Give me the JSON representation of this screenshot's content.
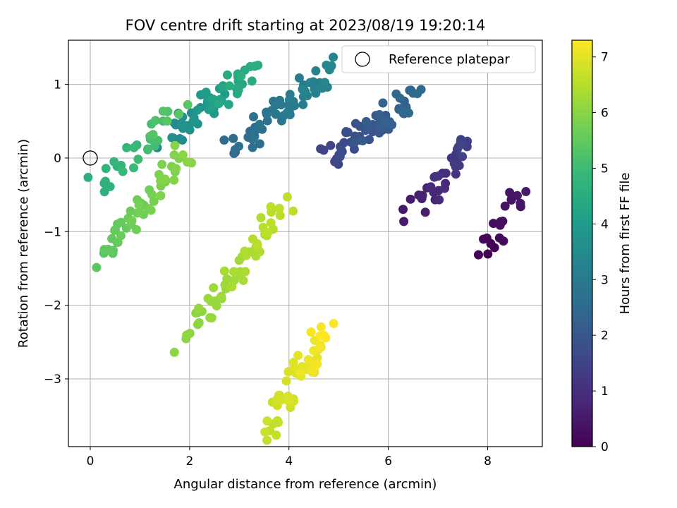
{
  "chart_data": {
    "type": "scatter",
    "title": "FOV centre drift starting at 2023/08/19 19:20:14",
    "xlabel": "Angular distance from reference (arcmin)",
    "ylabel": "Rotation from reference (arcmin)",
    "xlim": [
      -0.44,
      9.1
    ],
    "ylim": [
      -3.92,
      1.6
    ],
    "xticks": [
      "0",
      "2",
      "4",
      "6",
      "8"
    ],
    "yticks": [
      "−3",
      "−2",
      "−1",
      "0",
      "1"
    ],
    "xtick_values": [
      0,
      2,
      4,
      6,
      8
    ],
    "ytick_values": [
      -3,
      -2,
      -1,
      0,
      1
    ],
    "grid": true,
    "legend": {
      "placement": "top-right",
      "entries": [
        "Reference platepar"
      ]
    },
    "reference_point": {
      "x": 0,
      "y": 0
    },
    "colorbar": {
      "label": "Hours from first FF file",
      "colormap": "viridis",
      "range": [
        0,
        7.3
      ],
      "ticks": [
        "0",
        "1",
        "2",
        "3",
        "4",
        "5",
        "6",
        "7"
      ],
      "tick_values": [
        0,
        1,
        2,
        3,
        4,
        5,
        6,
        7
      ]
    },
    "segments": [
      {
        "hours": [
          0.0,
          0.5
        ],
        "n": 20,
        "x": [
          7.85,
          8.7
        ],
        "y": [
          -1.4,
          -0.4
        ]
      },
      {
        "hours": [
          0.5,
          1.5
        ],
        "n": 35,
        "x": [
          6.5,
          7.7
        ],
        "y": [
          -0.7,
          0.2
        ]
      },
      {
        "hours": [
          1.5,
          2.5
        ],
        "n": 60,
        "x": [
          4.8,
          6.5
        ],
        "y": [
          0.0,
          0.8
        ]
      },
      {
        "hours": [
          2.5,
          3.4
        ],
        "n": 60,
        "x": [
          3.0,
          4.8
        ],
        "y": [
          0.2,
          1.2
        ]
      },
      {
        "hours": [
          3.4,
          4.6
        ],
        "n": 60,
        "x": [
          1.6,
          3.2
        ],
        "y": [
          0.3,
          1.1
        ]
      },
      {
        "hours": [
          4.6,
          5.4
        ],
        "n": 30,
        "x": [
          0.2,
          1.8
        ],
        "y": [
          -0.3,
          0.7
        ]
      },
      {
        "hours": [
          5.4,
          6.0
        ],
        "n": 50,
        "x": [
          0.3,
          1.8
        ],
        "y": [
          -1.3,
          0.0
        ]
      },
      {
        "hours": [
          6.0,
          6.6
        ],
        "n": 60,
        "x": [
          2.0,
          3.8
        ],
        "y": [
          -2.4,
          -0.7
        ]
      },
      {
        "hours": [
          6.6,
          7.3
        ],
        "n": 50,
        "x": [
          3.6,
          4.8
        ],
        "y": [
          -3.65,
          -2.3
        ]
      }
    ]
  },
  "colors": {
    "viridis_stops": [
      "#440154",
      "#482878",
      "#3e4989",
      "#31688e",
      "#26828e",
      "#1f9e89",
      "#35b779",
      "#6ece58",
      "#b5de2b",
      "#fde725"
    ],
    "grid": "#b0b0b0",
    "frame": "#000000"
  }
}
